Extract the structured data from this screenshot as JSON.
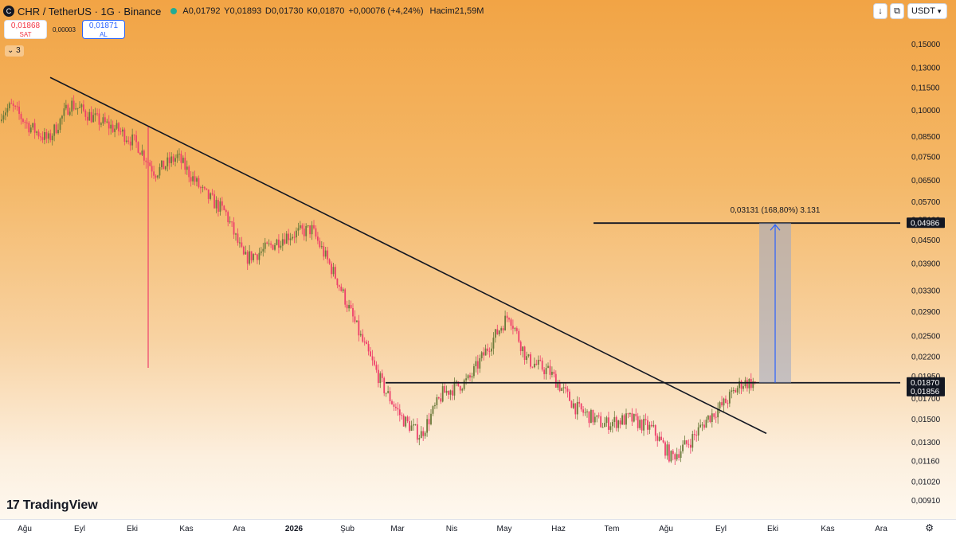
{
  "header": {
    "symbol_icon": "chr-coin-icon",
    "title": "CHR / TetherUS · 1G · Binance",
    "open_label": "A",
    "open": "0,01792",
    "high_label": "Y",
    "high": "0,01893",
    "low_label": "D",
    "low": "0,01730",
    "close_label": "K",
    "close": "0,01870",
    "change": "+0,00076 (+4,24%)",
    "volume_label": "Hacim",
    "volume": "21,59M"
  },
  "trade": {
    "sell_price": "0,01868",
    "sell_label": "SAT",
    "spread": "0,00003",
    "buy_price": "0,01871",
    "buy_label": "AL",
    "indicator_count": "3"
  },
  "toolbar": {
    "currency": "USDT",
    "arrow_icon": "arrow-down-icon",
    "screen_icon": "fullscreen-icon"
  },
  "logo_text": "TradingView",
  "colors": {
    "up": "#22ab94",
    "down": "#f23645",
    "candle_up_muted": "#6b7a3a",
    "candle_down_muted": "#ee3f6b",
    "measure_fill": "#9aa7c7",
    "measure_line": "#2962ff"
  },
  "chart_data": {
    "type": "candlestick",
    "scale": "log",
    "y_ticks": [
      "0,15000",
      "0,13000",
      "0,11500",
      "0,10000",
      "0,08500",
      "0,07500",
      "0,06500",
      "0,05700",
      "0,05100",
      "0,04500",
      "0,03900",
      "0,03300",
      "0,02900",
      "0,02500",
      "0,02200",
      "0,01950",
      "0,01700",
      "0,01500",
      "0,01300",
      "0,01160",
      "0,01020",
      "0,00910"
    ],
    "y_tick_values": [
      0.15,
      0.13,
      0.115,
      0.1,
      0.085,
      0.075,
      0.065,
      0.057,
      0.051,
      0.045,
      0.039,
      0.033,
      0.029,
      0.025,
      0.022,
      0.0195,
      0.017,
      0.015,
      0.013,
      0.0116,
      0.0102,
      0.0091
    ],
    "x_ticks": [
      "Ağu",
      "Eyl",
      "Eki",
      "Kas",
      "Ara",
      "2026",
      "Şub",
      "Mar",
      "Nis",
      "May",
      "Haz",
      "Tem",
      "Ağu",
      "Eyl",
      "Eki",
      "Kas",
      "Ara"
    ],
    "price_path": [
      [
        "Ağu",
        0.102
      ],
      [
        "Ağu",
        0.09
      ],
      [
        "Ağu",
        0.083
      ],
      [
        "Eyl",
        0.104
      ],
      [
        "Eyl",
        0.094
      ],
      [
        "Eki",
        0.088
      ],
      [
        "Eki",
        0.081
      ],
      [
        "Eki",
        0.068
      ],
      [
        "Kas",
        0.075
      ],
      [
        "Kas",
        0.06
      ],
      [
        "Ara",
        0.053
      ],
      [
        "Ara",
        0.04
      ],
      [
        "Ara",
        0.042
      ],
      [
        "2026",
        0.046
      ],
      [
        "2026",
        0.048
      ],
      [
        "Şub",
        0.035
      ],
      [
        "Şub",
        0.024
      ],
      [
        "Mar",
        0.018
      ],
      [
        "Mar",
        0.015
      ],
      [
        "Mar",
        0.0135
      ],
      [
        "Nis",
        0.0175
      ],
      [
        "Nis",
        0.019
      ],
      [
        "May",
        0.024
      ],
      [
        "May",
        0.0285
      ],
      [
        "May",
        0.0215
      ],
      [
        "Haz",
        0.02
      ],
      [
        "Haz",
        0.016
      ],
      [
        "Tem",
        0.0145
      ],
      [
        "Tem",
        0.015
      ],
      [
        "Ağu",
        0.014
      ],
      [
        "Ağu",
        0.0118
      ],
      [
        "Ağu",
        0.013
      ],
      [
        "Eyl",
        0.015
      ],
      [
        "Eyl",
        0.0165
      ],
      [
        "Eyl",
        0.0187
      ]
    ],
    "annotations": {
      "trendline": {
        "from": [
          "Ağu",
          0.122
        ],
        "to": [
          "Eyl",
          0.0137
        ]
      },
      "support_line": {
        "price": 0.0187,
        "from": "Mar"
      },
      "target_line": {
        "price": 0.04986,
        "from": "Tem"
      },
      "measure_label": "0,03131 (168,80%) 3.131"
    },
    "price_labels": [
      {
        "text": "0,04986",
        "value": 0.04986
      },
      {
        "text": "0,01870",
        "value": 0.0187
      },
      {
        "text": "0,01856",
        "value": 0.01856
      }
    ]
  }
}
